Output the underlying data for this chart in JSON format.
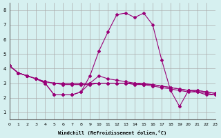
{
  "xlabel": "Windchill (Refroidissement éolien,°C)",
  "background_color": "#d6f0f0",
  "grid_color": "#aaaaaa",
  "line_color": "#990077",
  "x_ticks": [
    0,
    1,
    2,
    3,
    4,
    5,
    6,
    7,
    8,
    9,
    10,
    11,
    12,
    13,
    14,
    15,
    16,
    17,
    18,
    19,
    20,
    21,
    22,
    23
  ],
  "y_ticks": [
    1,
    2,
    3,
    4,
    5,
    6,
    7,
    8
  ],
  "xlim": [
    0,
    23
  ],
  "ylim": [
    0.5,
    8.5
  ],
  "series": [
    [
      4.2,
      3.7,
      3.5,
      3.3,
      3.0,
      2.2,
      2.2,
      2.2,
      2.4,
      3.5,
      5.2,
      6.5,
      7.7,
      7.8,
      7.5,
      7.8,
      7.0,
      4.6,
      2.5,
      1.4,
      2.5,
      2.4,
      2.2,
      2.2
    ],
    [
      4.2,
      3.7,
      3.5,
      3.3,
      3.0,
      2.2,
      2.2,
      2.2,
      2.4,
      3.0,
      3.5,
      3.3,
      3.2,
      3.1,
      3.0,
      2.9,
      2.8,
      2.7,
      2.6,
      2.5,
      2.4,
      2.4,
      2.3,
      2.2
    ],
    [
      4.2,
      3.7,
      3.5,
      3.3,
      3.1,
      3.0,
      2.9,
      2.9,
      2.9,
      2.9,
      3.0,
      3.0,
      3.0,
      3.0,
      2.9,
      2.9,
      2.9,
      2.8,
      2.7,
      2.6,
      2.5,
      2.5,
      2.4,
      2.3
    ],
    [
      4.2,
      3.7,
      3.5,
      3.3,
      3.1,
      3.0,
      3.0,
      3.0,
      3.0,
      3.0,
      3.0,
      3.0,
      3.0,
      3.0,
      3.0,
      3.0,
      2.9,
      2.8,
      2.7,
      2.6,
      2.5,
      2.5,
      2.4,
      2.3
    ]
  ]
}
